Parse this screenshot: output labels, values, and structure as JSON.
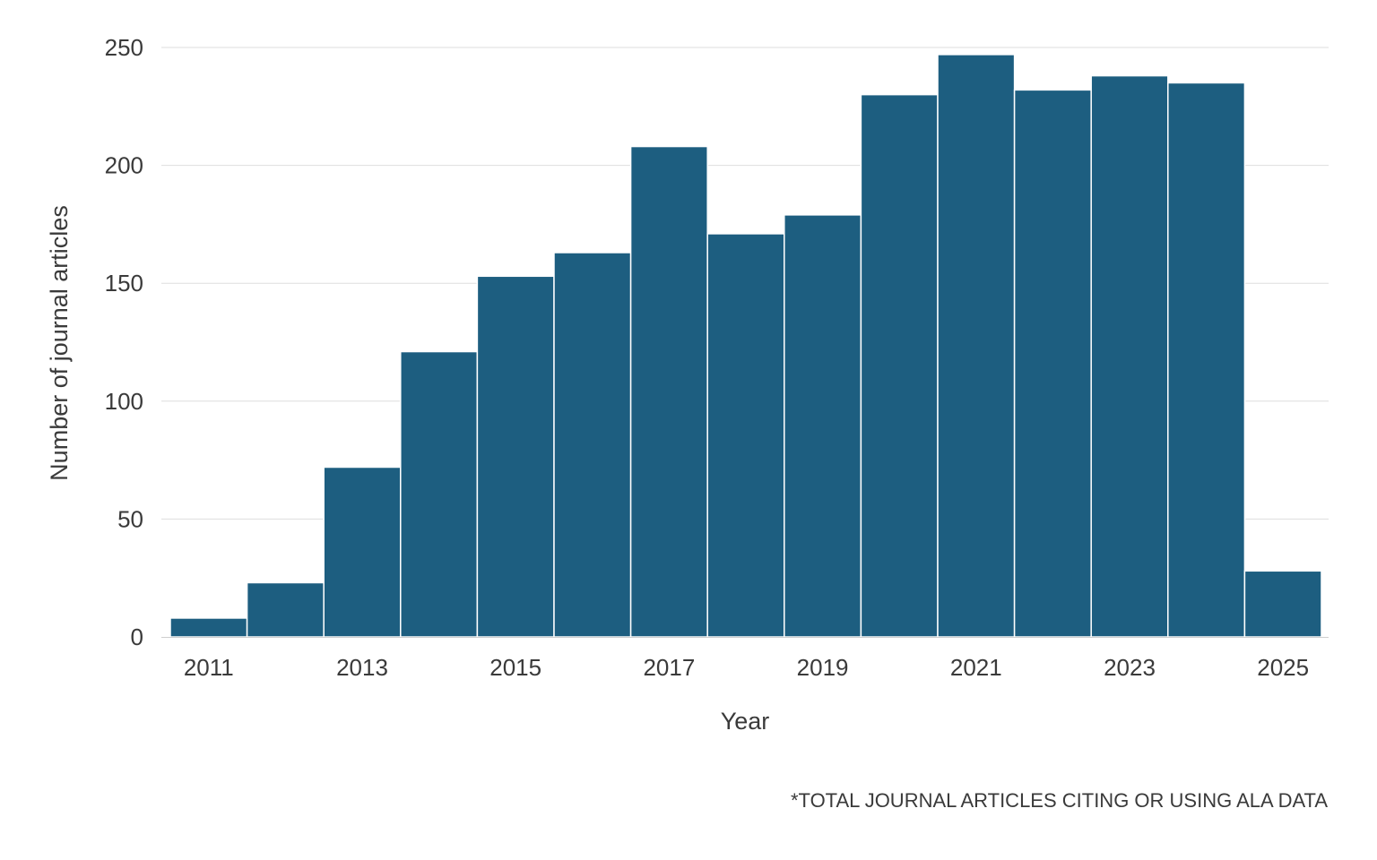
{
  "colors": {
    "bar": "#1d5e80",
    "bar_border": "#ffffff",
    "text": "#3a3a3a",
    "grid": "#dedede"
  },
  "chart_data": {
    "type": "bar",
    "x": [
      2011,
      2012,
      2013,
      2014,
      2015,
      2016,
      2017,
      2018,
      2019,
      2020,
      2021,
      2022,
      2023,
      2024,
      2025
    ],
    "values": [
      8,
      23,
      72,
      121,
      153,
      163,
      208,
      171,
      179,
      230,
      247,
      232,
      238,
      235,
      28
    ],
    "xlabel": "Year",
    "ylabel": "Number of journal articles",
    "ylim": [
      0,
      250
    ],
    "yticks": [
      0,
      50,
      100,
      150,
      200,
      250
    ],
    "xticks": [
      2011,
      2013,
      2015,
      2017,
      2019,
      2021,
      2023,
      2025
    ],
    "grid": "horizontal",
    "legend": "none",
    "caption": "*TOTAL JOURNAL ARTICLES CITING OR USING ALA DATA"
  }
}
